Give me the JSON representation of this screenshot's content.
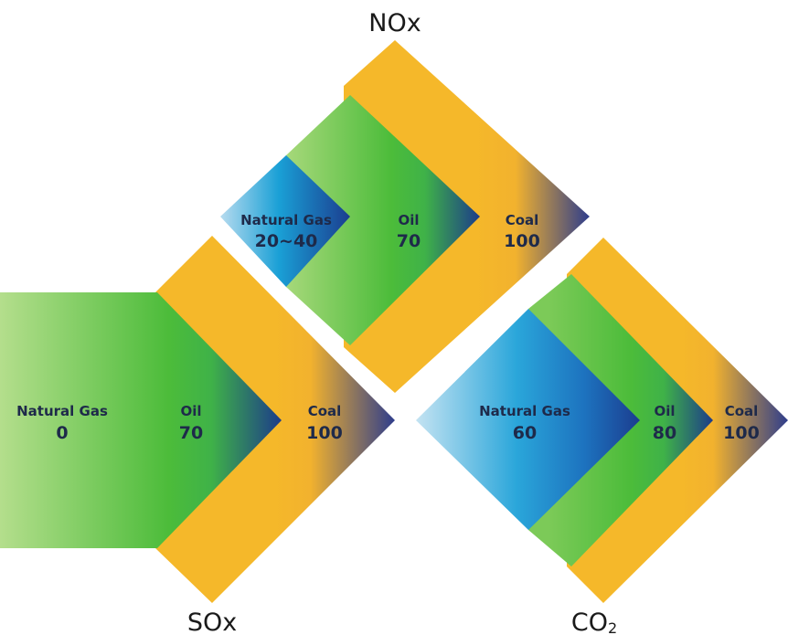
{
  "colors": {
    "coal_orange": "#f5b82a",
    "coal_navy": "#2e3d8c",
    "oil_green_light": "#a9d97c",
    "oil_green": "#4cbc3a",
    "oil_navy": "#1c3b8a",
    "gas_light": "#b6dbef",
    "gas_cyan": "#1aa0d6",
    "gas_navy": "#1b3d8f",
    "text_dark": "#1e2a4a"
  },
  "diagrams": {
    "nox": {
      "title": "NOx",
      "gas": {
        "name": "Natural Gas",
        "value": "20~40"
      },
      "oil": {
        "name": "Oil",
        "value": "70"
      },
      "coal": {
        "name": "Coal",
        "value": "100"
      }
    },
    "sox": {
      "title": "SOx",
      "gas": {
        "name": "Natural Gas",
        "value": "0"
      },
      "oil": {
        "name": "Oil",
        "value": "70"
      },
      "coal": {
        "name": "Coal",
        "value": "100"
      }
    },
    "co2": {
      "title_main": "CO",
      "title_sub": "2",
      "gas": {
        "name": "Natural Gas",
        "value": "60"
      },
      "oil": {
        "name": "Oil",
        "value": "80"
      },
      "coal": {
        "name": "Coal",
        "value": "100"
      }
    }
  }
}
